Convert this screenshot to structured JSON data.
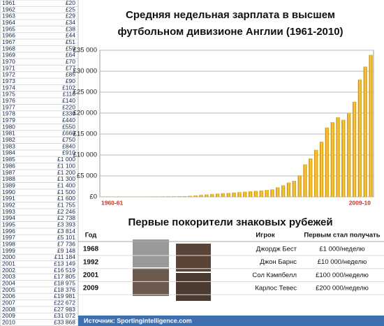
{
  "side_table": {
    "rows": [
      [
        "1961",
        "£20"
      ],
      [
        "1962",
        "£25"
      ],
      [
        "1963",
        "£29"
      ],
      [
        "1964",
        "£34"
      ],
      [
        "1965",
        "£38"
      ],
      [
        "1966",
        "£44"
      ],
      [
        "1967",
        "£51"
      ],
      [
        "1968",
        "£59"
      ],
      [
        "1969",
        "£64"
      ],
      [
        "1970",
        "£70"
      ],
      [
        "1971",
        "£77"
      ],
      [
        "1972",
        "£85"
      ],
      [
        "1973",
        "£90"
      ],
      [
        "1974",
        "£102"
      ],
      [
        "1975",
        "£116"
      ],
      [
        "1976",
        "£140"
      ],
      [
        "1977",
        "£220"
      ],
      [
        "1978",
        "£330"
      ],
      [
        "1979",
        "£440"
      ],
      [
        "1980",
        "£550"
      ],
      [
        "1981",
        "£660"
      ],
      [
        "1982",
        "£750"
      ],
      [
        "1983",
        "£840"
      ],
      [
        "1984",
        "£910"
      ],
      [
        "1985",
        "£1 000"
      ],
      [
        "1986",
        "£1 100"
      ],
      [
        "1987",
        "£1 200"
      ],
      [
        "1988",
        "£1 300"
      ],
      [
        "1989",
        "£1 400"
      ],
      [
        "1990",
        "£1 500"
      ],
      [
        "1991",
        "£1 600"
      ],
      [
        "1992",
        "£1 755"
      ],
      [
        "1993",
        "£2 246"
      ],
      [
        "1994",
        "£2 738"
      ],
      [
        "1995",
        "£3 393"
      ],
      [
        "1996",
        "£3 814"
      ],
      [
        "1997",
        "£5 101"
      ],
      [
        "1998",
        "£7 736"
      ],
      [
        "1999",
        "£9 148"
      ],
      [
        "2000",
        "£11 184"
      ],
      [
        "2001",
        "£13 149"
      ],
      [
        "2002",
        "£16 519"
      ],
      [
        "2003",
        "£17 805"
      ],
      [
        "2004",
        "£18 975"
      ],
      [
        "2005",
        "£18 376"
      ],
      [
        "2006",
        "£19 981"
      ],
      [
        "2007",
        "£22 672"
      ],
      [
        "2008",
        "£27 983"
      ],
      [
        "2009",
        "£31 072"
      ],
      [
        "2010",
        "£33 868"
      ]
    ]
  },
  "chart_data": {
    "type": "bar",
    "title": [
      "Средняя недельная зарплата в высшем",
      "футбольном дивизионе Англии (1961-2010)"
    ],
    "categories": [
      "1960-61",
      null,
      null,
      null,
      null,
      null,
      null,
      null,
      null,
      null,
      null,
      null,
      null,
      null,
      null,
      null,
      null,
      null,
      null,
      null,
      null,
      null,
      null,
      null,
      null,
      null,
      null,
      null,
      null,
      null,
      null,
      null,
      null,
      null,
      null,
      null,
      null,
      null,
      null,
      null,
      null,
      null,
      null,
      null,
      null,
      null,
      null,
      null,
      null,
      "2009-10"
    ],
    "values": [
      20,
      25,
      29,
      34,
      38,
      44,
      51,
      59,
      64,
      70,
      77,
      85,
      90,
      102,
      116,
      140,
      220,
      330,
      440,
      550,
      660,
      750,
      840,
      910,
      1000,
      1100,
      1200,
      1300,
      1400,
      1500,
      1600,
      1755,
      2246,
      2738,
      3393,
      3814,
      5101,
      7736,
      9148,
      11184,
      13149,
      16519,
      17805,
      18975,
      18376,
      19981,
      22672,
      27983,
      31072,
      33868
    ],
    "color": "#e8a800",
    "ylim": [
      0,
      35000
    ],
    "yticks": [
      {
        "value": 0,
        "label": "£0"
      },
      {
        "value": 5000,
        "label": "£5 000"
      },
      {
        "value": 10000,
        "label": "£10 000"
      },
      {
        "value": 15000,
        "label": "£15 000"
      },
      {
        "value": 20000,
        "label": "£20 000"
      },
      {
        "value": 25000,
        "label": "£25 000"
      },
      {
        "value": 30000,
        "label": "£30 000"
      },
      {
        "value": 35000,
        "label": "£35 000"
      }
    ],
    "grid": true
  },
  "records": {
    "title": "Первые покорители знаковых рубежей",
    "headers": [
      "Год",
      "Игрок",
      "Первым стал получать"
    ],
    "rows": [
      [
        "1968",
        "Джордж Бест",
        "£1 000/неделю"
      ],
      [
        "1992",
        "Джон Барнс",
        "£10 000/неделю"
      ],
      [
        "2001",
        "Сол Кэмпбелл",
        "£100 000/неделю"
      ],
      [
        "2009",
        "Карлос Тевес",
        "£200 000/неделю"
      ]
    ]
  },
  "source": "Источник: Sportingintelligence.com"
}
